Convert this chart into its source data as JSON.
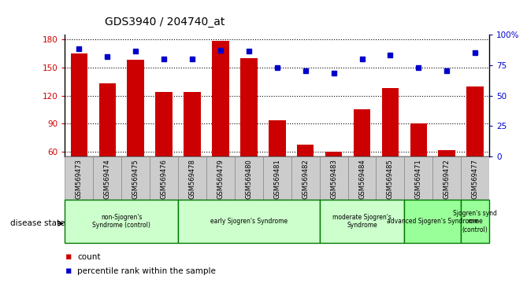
{
  "title": "GDS3940 / 204740_at",
  "samples": [
    "GSM569473",
    "GSM569474",
    "GSM569475",
    "GSM569476",
    "GSM569478",
    "GSM569479",
    "GSM569480",
    "GSM569481",
    "GSM569482",
    "GSM569483",
    "GSM569484",
    "GSM569485",
    "GSM569471",
    "GSM569472",
    "GSM569477"
  ],
  "counts": [
    165,
    133,
    158,
    124,
    124,
    178,
    160,
    94,
    68,
    60,
    105,
    128,
    90,
    62,
    130
  ],
  "percentiles": [
    88,
    82,
    86,
    80,
    80,
    87,
    86,
    73,
    70,
    68,
    80,
    83,
    73,
    70,
    85
  ],
  "groups": [
    {
      "label": "non-Sjogren's\nSyndrome (control)",
      "indices": [
        0,
        1,
        2,
        3
      ],
      "color": "#ccffcc"
    },
    {
      "label": "early Sjogren's Syndrome",
      "indices": [
        4,
        5,
        6,
        7,
        8
      ],
      "color": "#ccffcc"
    },
    {
      "label": "moderate Sjogren's\nSyndrome",
      "indices": [
        9,
        10,
        11
      ],
      "color": "#ccffcc"
    },
    {
      "label": "advanced Sjogren's Syndrome",
      "indices": [
        12,
        13
      ],
      "color": "#99ff99"
    },
    {
      "label": "Sjogren's synd\nrome\n(control)",
      "indices": [
        14
      ],
      "color": "#99ff99"
    }
  ],
  "ylim_left": [
    55,
    185
  ],
  "ylim_right": [
    0,
    100
  ],
  "yticks_left": [
    60,
    90,
    120,
    150,
    180
  ],
  "yticks_right": [
    0,
    25,
    50,
    75,
    100
  ],
  "bar_color": "#cc0000",
  "dot_color": "#0000cc",
  "background_color": "#ffffff",
  "tick_bg_color": "#cccccc",
  "group_border_color": "#007700",
  "grid_color": "black",
  "bar_width": 0.6
}
